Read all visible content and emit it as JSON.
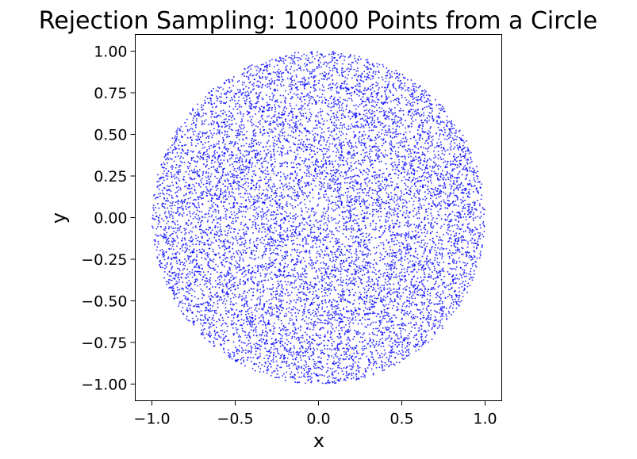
{
  "chart_data": {
    "type": "scatter",
    "title": "Rejection Sampling: 10000 Points from a Circle",
    "xlabel": "x",
    "ylabel": "y",
    "xlim": [
      -1.1,
      1.1
    ],
    "ylim": [
      -1.1,
      1.1
    ],
    "x_ticks": [
      -1.0,
      -0.5,
      0.0,
      0.5,
      1.0
    ],
    "x_tick_labels": [
      "−1.0",
      "−0.5",
      "0.0",
      "0.5",
      "1.0"
    ],
    "y_ticks": [
      1.0,
      0.75,
      0.5,
      0.25,
      0.0,
      -0.25,
      -0.5,
      -0.75,
      -1.0
    ],
    "y_tick_labels": [
      "1.00",
      "0.75",
      "0.50",
      "0.25",
      "0.00",
      "−0.25",
      "−0.50",
      "−0.75",
      "−1.00"
    ],
    "grid": false,
    "series": [
      {
        "point_count": 10000,
        "distribution": "uniform within circle x^2 + y^2 <= 1",
        "color": "#0000ff",
        "alpha": 0.8
      }
    ]
  }
}
